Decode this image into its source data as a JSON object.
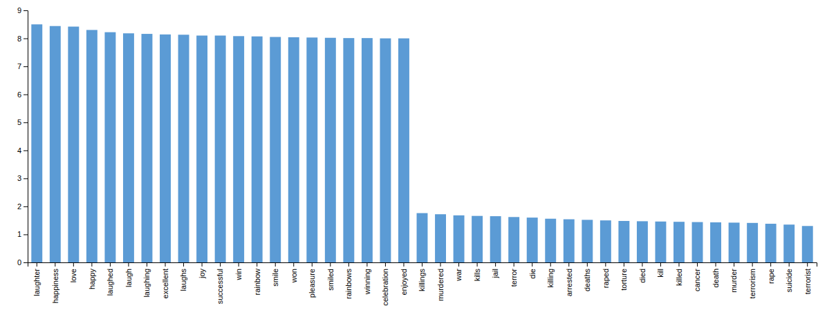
{
  "chart_data": {
    "type": "bar",
    "categories": [
      "laughter",
      "happiness",
      "love",
      "happy",
      "laughed",
      "laugh",
      "laughing",
      "excellent",
      "laughs",
      "joy",
      "successful",
      "win",
      "rainbow",
      "smile",
      "won",
      "pleasure",
      "smiled",
      "rainbows",
      "winning",
      "celebration",
      "enjoyed",
      "killings",
      "murdered",
      "war",
      "kills",
      "jail",
      "terror",
      "die",
      "killing",
      "arrested",
      "deaths",
      "raped",
      "torture",
      "died",
      "kill",
      "killed",
      "cancer",
      "death",
      "murder",
      "terrorism",
      "rape",
      "suicide",
      "terrorist"
    ],
    "values": [
      8.5,
      8.44,
      8.42,
      8.3,
      8.22,
      8.18,
      8.16,
      8.14,
      8.13,
      8.1,
      8.1,
      8.08,
      8.07,
      8.05,
      8.04,
      8.03,
      8.02,
      8.01,
      8.01,
      8.0,
      8.0,
      1.76,
      1.72,
      1.68,
      1.66,
      1.65,
      1.62,
      1.6,
      1.56,
      1.54,
      1.52,
      1.5,
      1.48,
      1.47,
      1.46,
      1.45,
      1.44,
      1.43,
      1.42,
      1.41,
      1.38,
      1.35,
      1.3
    ],
    "color": "#5B9BD5",
    "ylim": [
      0,
      9
    ],
    "yticks": [
      0,
      1,
      2,
      3,
      4,
      5,
      6,
      7,
      8,
      9
    ],
    "grid": false
  }
}
